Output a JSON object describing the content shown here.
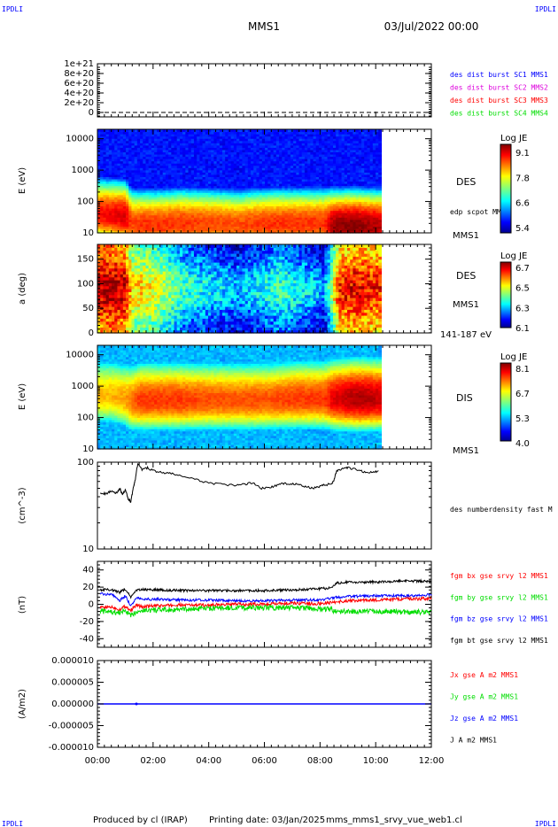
{
  "header": {
    "corner_tl": "IPDLI",
    "corner_tr": "IPDLI",
    "corner_bl": "IPDLI",
    "corner_br": "IPDLI",
    "spacecraft": "MMS1",
    "datetime": "03/Jul/2022 00:00"
  },
  "footer": {
    "produced": "Produced by cl (IRAP)",
    "printing": "Printing date: 03/Jan/2025",
    "file": "mms_mms1_srvy_vue_web1.cl"
  },
  "colors": {
    "blue": "#0000ff",
    "magenta": "#dd00dd",
    "red": "#ff0000",
    "green": "#00dd00",
    "black": "#000000"
  },
  "chart_data": [
    {
      "type": "line",
      "panel": "burst",
      "ylim": [
        0,
        1.1e+21
      ],
      "yticks": [
        "1e+21",
        "8e+20",
        "6e+20",
        "4e+20",
        "2e+20",
        "0"
      ],
      "ytick_values": [
        1e+21,
        8e+20,
        6e+20,
        4e+20,
        2e+20,
        0
      ],
      "legend": [
        "des dist burst SC1 MMS1",
        "des dist burst SC2 MMS2",
        "des dist burst SC3 MMS3",
        "des dist burst SC4 MMS4"
      ],
      "legend_colors": [
        "#0000ff",
        "#dd00dd",
        "#ff0000",
        "#00dd00"
      ],
      "series": []
    },
    {
      "type": "heatmap",
      "panel": "des-energy",
      "ylabel": "E (eV)",
      "yscale": "log",
      "ylim": [
        10,
        20000
      ],
      "yticks": [
        "10000",
        "1000",
        "100",
        "10"
      ],
      "ytick_values": [
        10000,
        1000,
        100,
        10
      ],
      "colorbar_title": "Log JE",
      "colorbar_ticks": [
        "9.1",
        "7.8",
        "6.6",
        "5.4"
      ],
      "colorbar_range": [
        5.4,
        9.1
      ],
      "right_label": "DES",
      "annotation": "edp scpot MMS1",
      "bottom_label": "MMS1",
      "data_end_hour": 10.2,
      "time_fractions": [
        0,
        0.05,
        0.1,
        0.12,
        0.15,
        0.2,
        0.3,
        0.4,
        0.5,
        0.6,
        0.7,
        0.8,
        0.83,
        0.9,
        0.95,
        1.0
      ],
      "peak_log_energy": [
        1.6,
        1.55,
        1.5,
        1.3,
        1.25,
        1.25,
        1.3,
        1.3,
        1.25,
        1.3,
        1.3,
        1.3,
        1.2,
        1.2,
        1.2,
        1.2
      ],
      "peak_intensity": [
        8.6,
        8.7,
        8.8,
        8.4,
        8.5,
        8.5,
        8.5,
        8.4,
        8.4,
        8.5,
        8.5,
        8.5,
        9.0,
        9.1,
        9.0,
        8.9
      ]
    },
    {
      "type": "heatmap",
      "panel": "des-pitch",
      "ylabel": "a (deg)",
      "ylim": [
        0,
        180
      ],
      "yticks": [
        "150",
        "100",
        "50",
        "0"
      ],
      "ytick_values": [
        150,
        100,
        50,
        0
      ],
      "colorbar_title": "Log JE",
      "colorbar_ticks": [
        "6.7",
        "6.5",
        "6.3",
        "6.1"
      ],
      "colorbar_range": [
        6.1,
        6.7
      ],
      "right_label": "DES",
      "right_label_2": "MMS1",
      "bottom_label": "141-187 eV",
      "data_end_hour": 10.2,
      "time_fractions": [
        0,
        0.05,
        0.1,
        0.12,
        0.2,
        0.3,
        0.4,
        0.5,
        0.6,
        0.65,
        0.75,
        0.8,
        0.85,
        0.9,
        0.95,
        1.0
      ],
      "mean_level": [
        6.6,
        6.62,
        6.6,
        6.45,
        6.42,
        6.3,
        6.25,
        6.22,
        6.27,
        6.3,
        6.24,
        6.2,
        6.55,
        6.58,
        6.57,
        6.55
      ]
    },
    {
      "type": "heatmap",
      "panel": "dis-energy",
      "ylabel": "E (eV)",
      "yscale": "log",
      "ylim": [
        10,
        20000
      ],
      "yticks": [
        "10000",
        "1000",
        "100",
        "10"
      ],
      "ytick_values": [
        10000,
        1000,
        100,
        10
      ],
      "colorbar_title": "Log JE",
      "colorbar_ticks": [
        "8.1",
        "6.7",
        "5.3",
        "4.0"
      ],
      "colorbar_range": [
        4.0,
        8.1
      ],
      "right_label": "DIS",
      "bottom_label": "MMS1",
      "data_end_hour": 10.2,
      "time_fractions": [
        0,
        0.05,
        0.1,
        0.12,
        0.15,
        0.2,
        0.3,
        0.4,
        0.5,
        0.6,
        0.7,
        0.8,
        0.83,
        0.9,
        0.95,
        1.0
      ],
      "peak_log_energy": [
        2.7,
        2.7,
        2.6,
        2.5,
        2.55,
        2.55,
        2.55,
        2.55,
        2.55,
        2.55,
        2.6,
        2.6,
        2.6,
        2.6,
        2.6,
        2.6
      ],
      "peak_intensity": [
        6.9,
        6.9,
        7.0,
        7.2,
        7.4,
        7.4,
        7.4,
        7.3,
        7.3,
        7.3,
        7.4,
        7.4,
        7.7,
        7.9,
        7.9,
        7.8
      ]
    },
    {
      "type": "line",
      "panel": "density",
      "ylabel": "(cm^-3)",
      "yscale": "log",
      "ylim": [
        10,
        100
      ],
      "yticks": [
        "100",
        "10"
      ],
      "ytick_values": [
        100,
        10
      ],
      "legend": [
        "des numberdensity fast M"
      ],
      "legend_colors": [
        "#000000"
      ],
      "series": [
        {
          "x": [
            0.1,
            0.3,
            0.5,
            0.7,
            0.8,
            0.9,
            1.0,
            1.1,
            1.2,
            1.3,
            1.35,
            1.45,
            1.6,
            1.8,
            2.0,
            2.3,
            2.6,
            3.0,
            3.5,
            4.0,
            4.5,
            5.0,
            5.3,
            5.6,
            5.9,
            6.2,
            6.5,
            6.8,
            7.1,
            7.4,
            7.7,
            8.0,
            8.2,
            8.4,
            8.5,
            8.6,
            8.8,
            9.0,
            9.3,
            9.6,
            9.9,
            10.1
          ],
          "y": [
            45,
            43,
            47,
            44,
            50,
            42,
            48,
            38,
            35,
            52,
            60,
            95,
            82,
            86,
            80,
            76,
            74,
            70,
            63,
            58,
            55,
            54,
            56,
            58,
            50,
            51,
            55,
            57,
            56,
            53,
            50,
            53,
            55,
            56,
            62,
            80,
            83,
            86,
            82,
            77,
            76,
            80
          ]
        }
      ]
    },
    {
      "type": "line",
      "panel": "magnetic-field",
      "ylabel": "(nT)",
      "ylim": [
        -50,
        50
      ],
      "yticks": [
        "40",
        "20",
        "0",
        "-20",
        "-40"
      ],
      "ytick_values": [
        40,
        20,
        0,
        -20,
        -40
      ],
      "legend": [
        "fgm bx gse srvy l2 MMS1",
        "fgm by gse srvy l2 MMS1",
        "fgm bz gse srvy l2 MMS1",
        "fgm bt gse srvy l2 MMS1"
      ],
      "legend_colors": [
        "#ff0000",
        "#00dd00",
        "#0000ff",
        "#000000"
      ],
      "x": [
        0.0,
        0.5,
        0.8,
        1.0,
        1.2,
        1.4,
        1.6,
        2.0,
        3.0,
        4.0,
        5.0,
        6.0,
        7.0,
        8.0,
        8.4,
        8.6,
        9.0,
        10.0,
        11.0,
        12.0
      ],
      "series": [
        {
          "name": "bx",
          "values": [
            -4,
            -3,
            -6,
            -2,
            -7,
            -1,
            -3,
            -2,
            -1,
            -1,
            0,
            0,
            1,
            1,
            2,
            3,
            4,
            5,
            6,
            7
          ]
        },
        {
          "name": "by",
          "values": [
            -8,
            -9,
            -10,
            -7,
            -14,
            -8,
            -7,
            -7,
            -6,
            -5,
            -4,
            -4,
            -4,
            -5,
            -6,
            -9,
            -8,
            -8,
            -9,
            -9
          ]
        },
        {
          "name": "bz",
          "values": [
            12,
            12,
            4,
            10,
            -2,
            8,
            6,
            6,
            5,
            5,
            4,
            4,
            5,
            5,
            7,
            8,
            9,
            10,
            10,
            11
          ]
        },
        {
          "name": "bt",
          "values": [
            17,
            17,
            14,
            18,
            8,
            16,
            17,
            17,
            16,
            16,
            16,
            16,
            17,
            18,
            19,
            25,
            26,
            26,
            27,
            27
          ]
        }
      ]
    },
    {
      "type": "line",
      "panel": "current-density",
      "ylabel": "(A/m2)",
      "ylim": [
        -1e-05,
        1e-05
      ],
      "yticks": [
        "0.000010",
        "0.000005",
        "0.000000",
        "-0.000005",
        "-0.000010"
      ],
      "ytick_values": [
        1e-05,
        5e-06,
        0,
        -5e-06,
        -1e-05
      ],
      "legend": [
        "Jx gse A m2 MMS1",
        "Jy gse A m2 MMS1",
        "Jz gse A m2 MMS1",
        "J A m2 MMS1"
      ],
      "legend_colors": [
        "#ff0000",
        "#00dd00",
        "#0000ff",
        "#000000"
      ],
      "x": [
        0,
        12
      ],
      "series": [
        {
          "name": "Jz",
          "values": [
            0,
            0
          ]
        }
      ]
    }
  ],
  "time_axis": {
    "ticks": [
      "00:00",
      "02:00",
      "04:00",
      "06:00",
      "08:00",
      "10:00",
      "12:00"
    ],
    "tick_hours": [
      0,
      2,
      4,
      6,
      8,
      10,
      12
    ]
  }
}
